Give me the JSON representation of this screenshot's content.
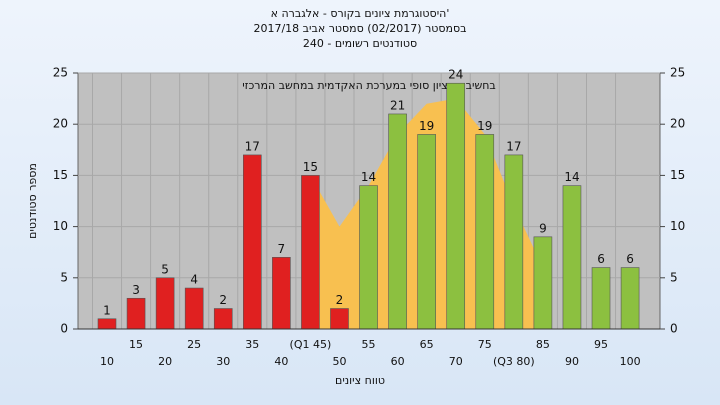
{
  "chart_data": {
    "type": "bar",
    "title": "היסטוגרמת ציונים בקורס - אלגברה א'",
    "subtitle": "בסמסטר (02/2017) סמסטר אביב 2017/18",
    "subtitle2": "סטודנטים רשומים - 240",
    "annotation": "בחשיבה : ציון סופי במערכת האקדמית במחשב המרכזי",
    "ylabel": "מספר סטודנטים",
    "xlabel": "טווח ציונים",
    "categories": [
      "10",
      "15",
      "20",
      "25",
      "30",
      "35",
      "40",
      "(Q1 45)",
      "50",
      "55",
      "60",
      "65",
      "70",
      "75",
      "(Q3 80)",
      "85",
      "90",
      "95",
      "100"
    ],
    "values": [
      1,
      3,
      5,
      4,
      2,
      17,
      7,
      15,
      2,
      14,
      21,
      19,
      24,
      19,
      17,
      9,
      14,
      6,
      6
    ],
    "colors": [
      "#e02020",
      "#e02020",
      "#e02020",
      "#e02020",
      "#e02020",
      "#e02020",
      "#e02020",
      "#e02020",
      "#e02020",
      "#8cc040",
      "#8cc040",
      "#8cc040",
      "#8cc040",
      "#8cc040",
      "#8cc040",
      "#8cc040",
      "#8cc040",
      "#8cc040",
      "#8cc040"
    ],
    "area": {
      "color": "#f8c050",
      "values": [
        null,
        null,
        null,
        null,
        null,
        null,
        null,
        15,
        10,
        14,
        19,
        22,
        22.5,
        19,
        12,
        6,
        null,
        null,
        null
      ]
    },
    "ylim": [
      0,
      25
    ],
    "yticks": [
      0,
      5,
      10,
      15,
      20,
      25
    ],
    "y2lim": [
      0,
      25
    ],
    "y2ticks": [
      0,
      5,
      10,
      15,
      20,
      25
    ],
    "grid": true
  }
}
